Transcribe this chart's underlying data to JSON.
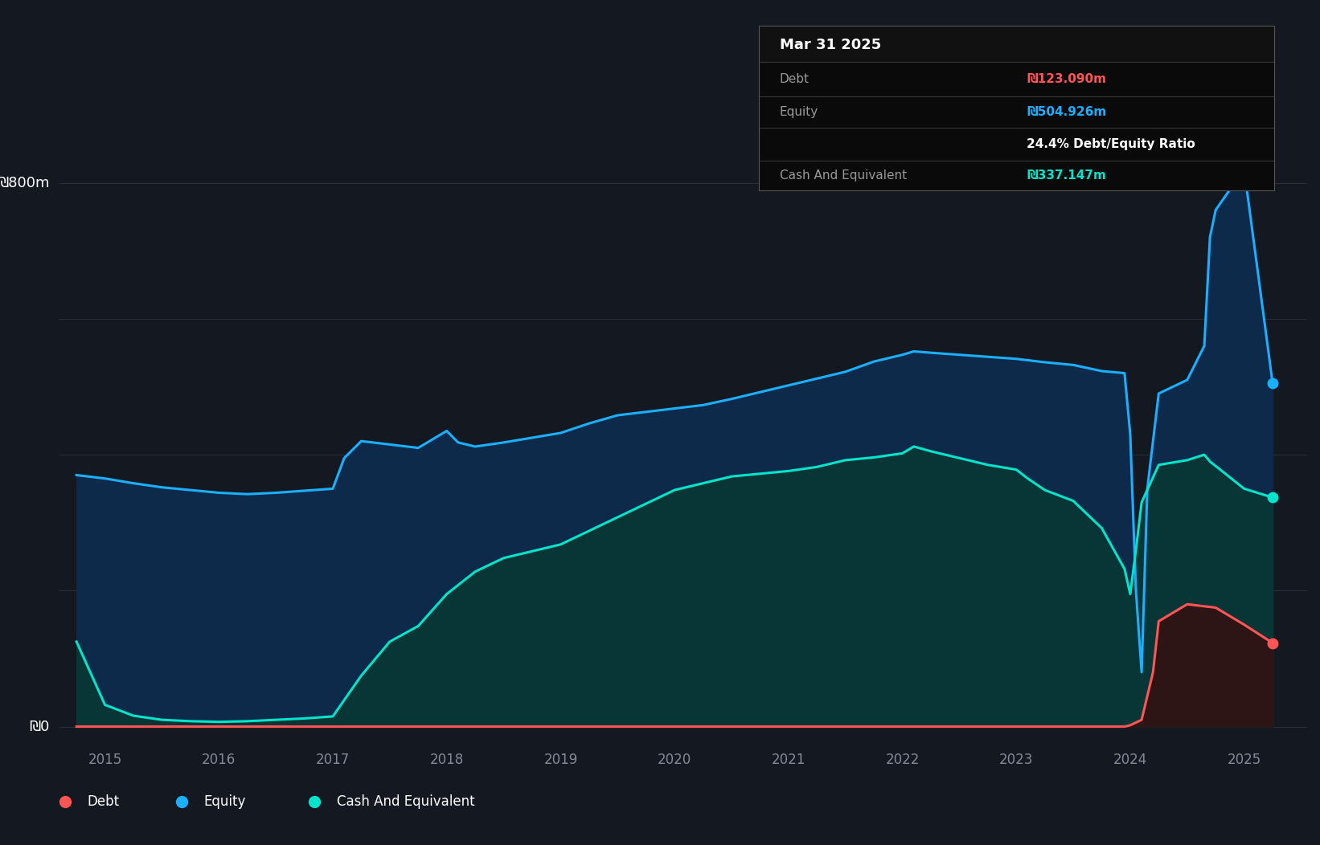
{
  "bg_color": "#141820",
  "plot_bg_color": "#141820",
  "grid_color": "#2d3545",
  "text_color": "#ffffff",
  "label_color": "#888899",
  "ylabel_800m": "₪800m",
  "ylabel_0": "₪0",
  "xlim_start": 2014.6,
  "xlim_end": 2025.55,
  "ylim_bottom": -25,
  "ylim_top": 870,
  "equity_color": "#1ab0ff",
  "equity_fill": "#0e2a4a",
  "cash_color": "#00e5cc",
  "cash_fill": "#083535",
  "debt_color": "#ff5555",
  "debt_fill": "#2d1515",
  "tooltip_bg": "#0a0a0a",
  "equity_data_x": [
    2014.75,
    2015.0,
    2015.25,
    2015.5,
    2015.75,
    2016.0,
    2016.25,
    2016.5,
    2016.75,
    2017.0,
    2017.1,
    2017.25,
    2017.5,
    2017.75,
    2018.0,
    2018.1,
    2018.25,
    2018.5,
    2018.75,
    2019.0,
    2019.25,
    2019.5,
    2019.75,
    2020.0,
    2020.25,
    2020.5,
    2020.75,
    2021.0,
    2021.25,
    2021.5,
    2021.75,
    2022.0,
    2022.1,
    2022.25,
    2022.5,
    2022.75,
    2023.0,
    2023.25,
    2023.5,
    2023.75,
    2023.95,
    2024.0,
    2024.05,
    2024.1,
    2024.15,
    2024.25,
    2024.5,
    2024.65,
    2024.7,
    2024.75,
    2025.0,
    2025.25
  ],
  "equity_data_y": [
    370,
    365,
    358,
    352,
    348,
    344,
    342,
    344,
    347,
    350,
    395,
    420,
    415,
    410,
    435,
    418,
    412,
    418,
    425,
    432,
    446,
    458,
    463,
    468,
    473,
    482,
    492,
    502,
    512,
    522,
    537,
    547,
    552,
    550,
    547,
    544,
    541,
    536,
    532,
    523,
    520,
    430,
    200,
    80,
    350,
    490,
    510,
    560,
    720,
    760,
    820,
    505
  ],
  "cash_data_x": [
    2014.75,
    2015.0,
    2015.25,
    2015.5,
    2015.75,
    2016.0,
    2016.25,
    2016.5,
    2016.75,
    2017.0,
    2017.25,
    2017.5,
    2017.75,
    2018.0,
    2018.25,
    2018.5,
    2018.75,
    2019.0,
    2019.25,
    2019.5,
    2019.75,
    2020.0,
    2020.25,
    2020.5,
    2020.75,
    2021.0,
    2021.25,
    2021.5,
    2021.75,
    2022.0,
    2022.1,
    2022.25,
    2022.5,
    2022.75,
    2023.0,
    2023.1,
    2023.25,
    2023.5,
    2023.75,
    2023.95,
    2024.0,
    2024.05,
    2024.1,
    2024.25,
    2024.5,
    2024.65,
    2024.7,
    2025.0,
    2025.25
  ],
  "cash_data_y": [
    125,
    32,
    16,
    10,
    8,
    7,
    8,
    10,
    12,
    15,
    75,
    125,
    148,
    195,
    228,
    248,
    258,
    268,
    288,
    308,
    328,
    348,
    358,
    368,
    372,
    376,
    382,
    392,
    396,
    402,
    412,
    405,
    395,
    385,
    378,
    365,
    348,
    332,
    292,
    232,
    195,
    260,
    330,
    385,
    392,
    400,
    390,
    350,
    337
  ],
  "debt_data_x": [
    2014.75,
    2015.0,
    2015.25,
    2015.5,
    2015.75,
    2016.0,
    2016.25,
    2016.5,
    2016.75,
    2017.0,
    2017.25,
    2017.5,
    2017.75,
    2018.0,
    2018.25,
    2018.5,
    2018.75,
    2019.0,
    2019.25,
    2019.5,
    2019.75,
    2020.0,
    2020.25,
    2020.5,
    2020.75,
    2021.0,
    2021.25,
    2021.5,
    2021.75,
    2022.0,
    2022.25,
    2022.5,
    2022.75,
    2023.0,
    2023.25,
    2023.5,
    2023.75,
    2023.95,
    2024.0,
    2024.1,
    2024.2,
    2024.25,
    2024.5,
    2024.75,
    2025.0,
    2025.25
  ],
  "debt_data_y": [
    0,
    0,
    0,
    0,
    0,
    0,
    0,
    0,
    0,
    0,
    0,
    0,
    0,
    0,
    0,
    0,
    0,
    0,
    0,
    0,
    0,
    0,
    0,
    0,
    0,
    0,
    0,
    0,
    0,
    0,
    0,
    0,
    0,
    0,
    0,
    0,
    0,
    0,
    2,
    10,
    80,
    155,
    180,
    175,
    150,
    123
  ],
  "x_ticks": [
    2015,
    2016,
    2017,
    2018,
    2019,
    2020,
    2021,
    2022,
    2023,
    2024,
    2025
  ],
  "x_tick_labels": [
    "2015",
    "2016",
    "2017",
    "2018",
    "2019",
    "2020",
    "2021",
    "2022",
    "2023",
    "2024",
    "2025"
  ],
  "tooltip": {
    "date": "Mar 31 2025",
    "debt_label": "Debt",
    "debt_value": "₪123.090m",
    "equity_label": "Equity",
    "equity_value": "₪504.926m",
    "ratio_value": "24.4% Debt/Equity Ratio",
    "cash_label": "Cash And Equivalent",
    "cash_value": "₪337.147m"
  },
  "legend_items": [
    {
      "label": "Debt",
      "color": "#ff5555"
    },
    {
      "label": "Equity",
      "color": "#1ab0ff"
    },
    {
      "label": "Cash And Equivalent",
      "color": "#00e5cc"
    }
  ]
}
